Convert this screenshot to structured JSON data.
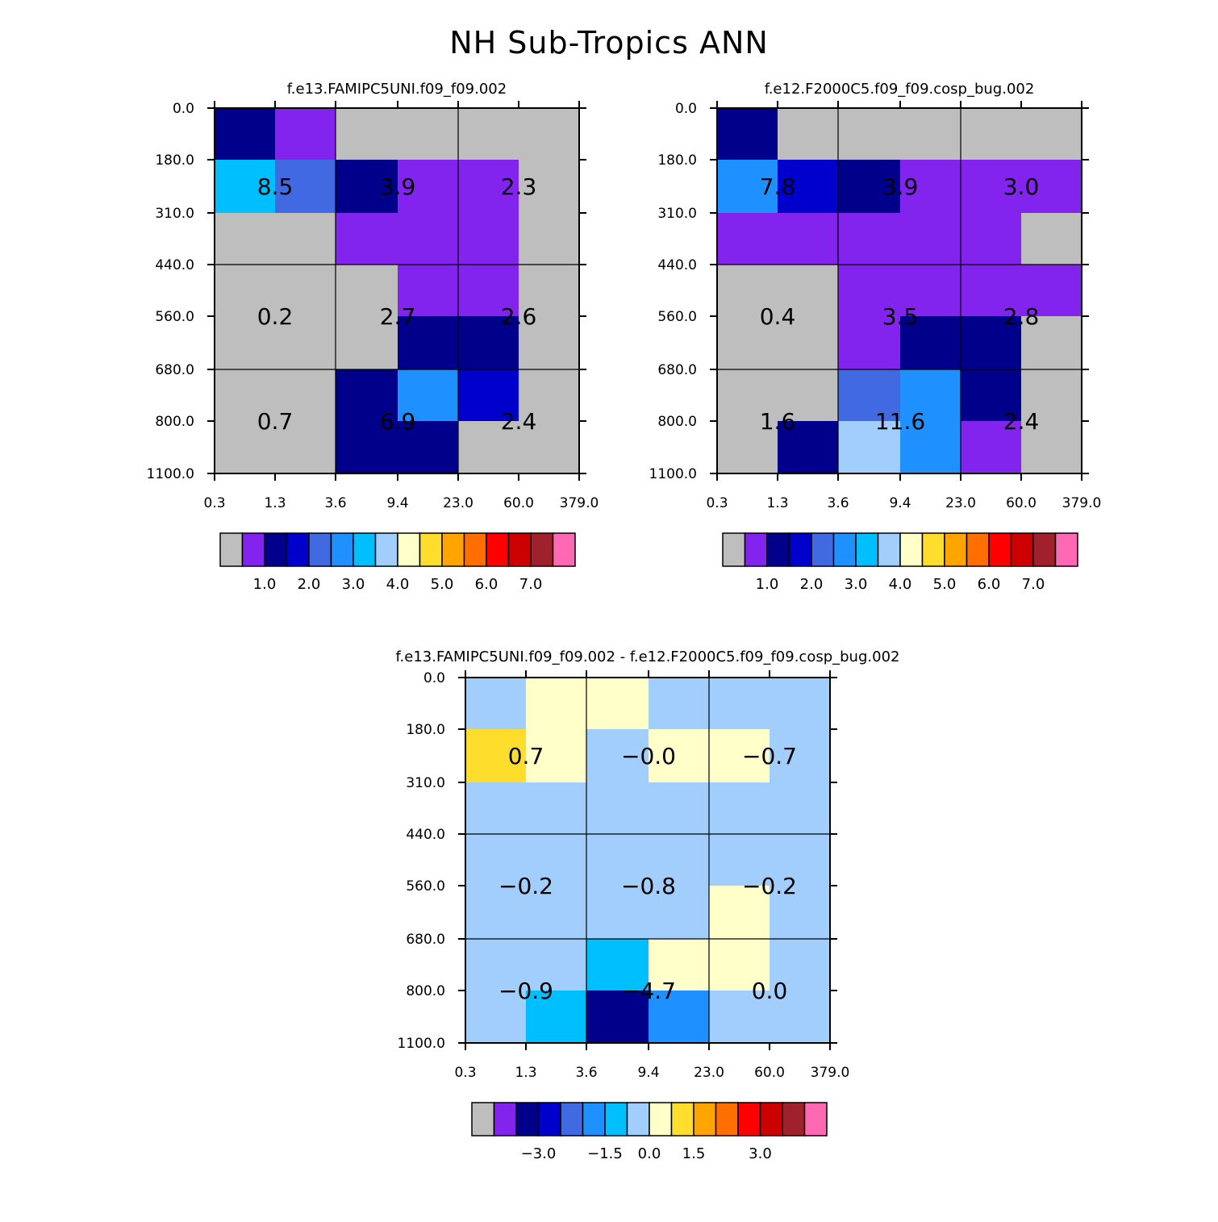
{
  "title": "NH Sub-Tropics ANN",
  "colors": {
    "palette": [
      "#bebebe",
      "#8323ee",
      "#00008b",
      "#0000cd",
      "#4169e1",
      "#1e90ff",
      "#00bfff",
      "#a2cefe",
      "#ffffc9",
      "#ffdd2d",
      "#ffa400",
      "#ff6f00",
      "#ff0000",
      "#cc0000",
      "#a0202b",
      "#ff69b4"
    ],
    "frame": "#000000",
    "background": "#ffffff"
  },
  "chart_data": [
    {
      "type": "heatmap",
      "title": "f.e13.FAMIPC5UNI.f09_f09.002",
      "x_tick_labels": [
        "0.3",
        "1.3",
        "3.6",
        "9.4",
        "23.0",
        "60.0",
        "379.0"
      ],
      "y_tick_labels": [
        "0.0",
        "180.0",
        "310.0",
        "440.0",
        "560.0",
        "680.0",
        "800.0",
        "1100.0"
      ],
      "cell_color_index": [
        [
          2,
          1,
          0,
          0,
          0,
          0
        ],
        [
          6,
          4,
          2,
          1,
          1,
          0
        ],
        [
          0,
          0,
          1,
          1,
          1,
          0
        ],
        [
          0,
          0,
          0,
          1,
          1,
          0
        ],
        [
          0,
          0,
          0,
          2,
          2,
          0
        ],
        [
          0,
          0,
          2,
          5,
          3,
          0
        ],
        [
          0,
          0,
          2,
          2,
          0,
          0
        ]
      ],
      "block_values": [
        [
          "8.5",
          "3.9",
          "2.3"
        ],
        [
          "0.2",
          "2.7",
          "2.6"
        ],
        [
          "0.7",
          "6.9",
          "2.4"
        ]
      ],
      "colorbar": {
        "tick_labels": [
          "1.0",
          "2.0",
          "3.0",
          "4.0",
          "5.0",
          "6.0",
          "7.0"
        ],
        "tick_boxes": [
          2,
          4,
          6,
          8,
          10,
          12,
          14
        ]
      }
    },
    {
      "type": "heatmap",
      "title": "f.e12.F2000C5.f09_f09.cosp_bug.002",
      "x_tick_labels": [
        "0.3",
        "1.3",
        "3.6",
        "9.4",
        "23.0",
        "60.0",
        "379.0"
      ],
      "y_tick_labels": [
        "0.0",
        "180.0",
        "310.0",
        "440.0",
        "560.0",
        "680.0",
        "800.0",
        "1100.0"
      ],
      "cell_color_index": [
        [
          2,
          0,
          0,
          0,
          0,
          0
        ],
        [
          5,
          3,
          2,
          1,
          1,
          1
        ],
        [
          1,
          1,
          1,
          1,
          1,
          0
        ],
        [
          0,
          0,
          1,
          1,
          1,
          1
        ],
        [
          0,
          0,
          1,
          2,
          2,
          0
        ],
        [
          0,
          0,
          4,
          5,
          2,
          0
        ],
        [
          0,
          2,
          7,
          5,
          1,
          0
        ]
      ],
      "block_values": [
        [
          "7.8",
          "3.9",
          "3.0"
        ],
        [
          "0.4",
          "3.5",
          "2.8"
        ],
        [
          "1.6",
          "11.6",
          "2.4"
        ]
      ],
      "colorbar": {
        "tick_labels": [
          "1.0",
          "2.0",
          "3.0",
          "4.0",
          "5.0",
          "6.0",
          "7.0"
        ],
        "tick_boxes": [
          2,
          4,
          6,
          8,
          10,
          12,
          14
        ]
      }
    },
    {
      "type": "heatmap",
      "title": "f.e13.FAMIPC5UNI.f09_f09.002 - f.e12.F2000C5.f09_f09.cosp_bug.002",
      "x_tick_labels": [
        "0.3",
        "1.3",
        "3.6",
        "9.4",
        "23.0",
        "60.0",
        "379.0"
      ],
      "y_tick_labels": [
        "0.0",
        "180.0",
        "310.0",
        "440.0",
        "560.0",
        "680.0",
        "800.0",
        "1100.0"
      ],
      "cell_color_index": [
        [
          7,
          8,
          8,
          7,
          7,
          7
        ],
        [
          9,
          8,
          7,
          8,
          8,
          7
        ],
        [
          7,
          7,
          7,
          7,
          7,
          7
        ],
        [
          7,
          7,
          7,
          7,
          7,
          7
        ],
        [
          7,
          7,
          7,
          7,
          8,
          7
        ],
        [
          7,
          7,
          6,
          8,
          8,
          7
        ],
        [
          7,
          6,
          2,
          5,
          7,
          7
        ]
      ],
      "block_values": [
        [
          "0.7",
          "-0.0",
          "-0.7"
        ],
        [
          "-0.2",
          "-0.8",
          "-0.2"
        ],
        [
          "-0.9",
          "-4.7",
          "0.0"
        ]
      ],
      "colorbar": {
        "tick_labels": [
          "-3.0",
          "-1.5",
          "0.0",
          "1.5",
          "3.0"
        ],
        "tick_boxes": [
          3,
          6,
          8,
          10,
          13
        ]
      }
    }
  ]
}
